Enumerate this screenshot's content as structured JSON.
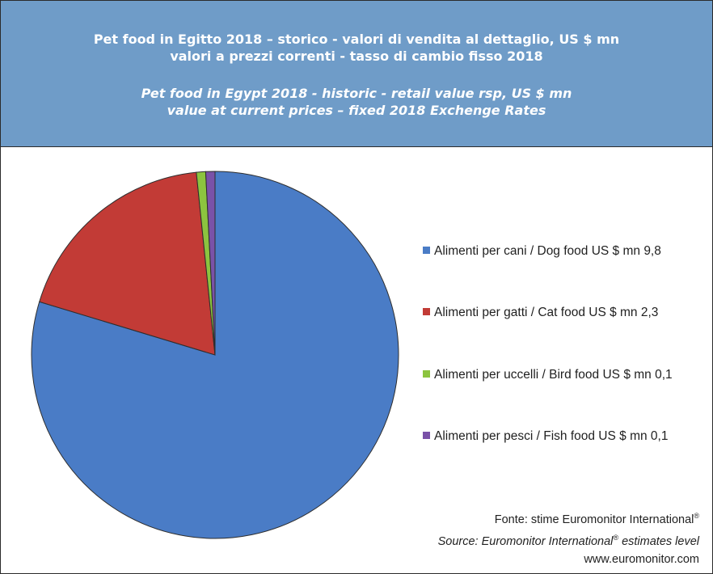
{
  "header": {
    "it_line1": "Pet food in Egitto 2018 – storico - valori di vendita al dettaglio, US $ mn",
    "it_line2": "valori a prezzi correnti - tasso di cambio fisso 2018",
    "en_line1": "Pet food in Egypt 2018 -  historic - retail value rsp, US $ mn",
    "en_line2": "value at current prices – fixed 2018 Exchenge Rates"
  },
  "chart_data": {
    "type": "pie",
    "title": "",
    "slices": [
      {
        "label": "Alimenti per cani  / Dog food US $ mn 9,8",
        "value": 9.8,
        "color": "#4a7cc6"
      },
      {
        "label": "Alimenti per gatti / Cat food US $ mn 2,3",
        "value": 2.3,
        "color": "#c23b36"
      },
      {
        "label": "Alimenti per uccelli / Bird food US $ mn 0,1",
        "value": 0.1,
        "color": "#8cc43f"
      },
      {
        "label": "Alimenti per pesci / Fish food US $ mn 0,1",
        "value": 0.1,
        "color": "#7a52a8"
      }
    ],
    "legend_position": "right"
  },
  "source": {
    "it_prefix": "Fonte: stime Euromonitor International",
    "reg": "®",
    "en_prefix": "Source: Euromonitor International",
    "en_suffix": " estimates level",
    "url": "www.euromonitor.com"
  }
}
